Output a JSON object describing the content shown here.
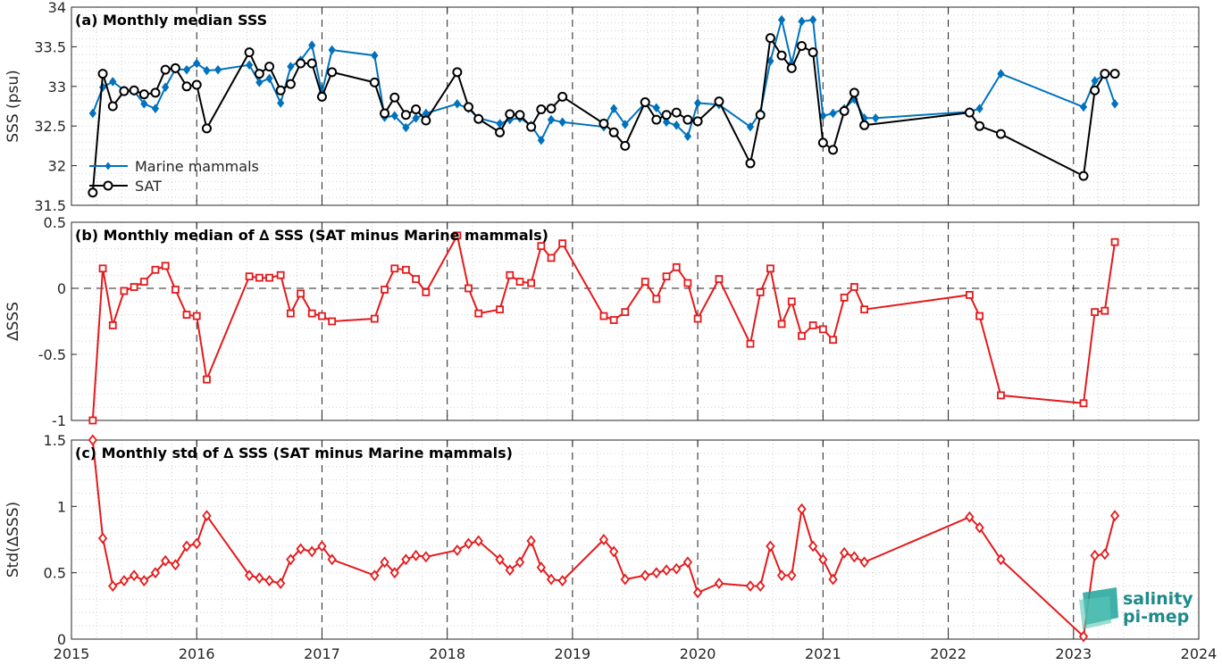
{
  "chart_data": [
    {
      "type": "line",
      "title": "(a) Monthly median SSS",
      "ylabel": "SSS (psu)",
      "ylim": [
        31.5,
        34
      ],
      "yticks": [
        "31.5",
        "32",
        "32.5",
        "33",
        "33.5",
        "34"
      ],
      "xlim": [
        2015,
        2024
      ],
      "xticks": [
        "2015",
        "2016",
        "2017",
        "2018",
        "2019",
        "2020",
        "2021",
        "2022",
        "2023",
        "2024"
      ],
      "grid": "minor dotted, yearly dashed vertical lines",
      "legend_position": "lower-left",
      "series": [
        {
          "name": "Marine mammals",
          "color": "#0072bd",
          "marker": "diamond",
          "x": [
            2015.17,
            2015.25,
            2015.33,
            2015.42,
            2015.5,
            2015.58,
            2015.67,
            2015.75,
            2015.83,
            2015.92,
            2016.0,
            2016.08,
            2016.17,
            2016.42,
            2016.5,
            2016.58,
            2016.67,
            2016.75,
            2016.83,
            2016.92,
            2017.0,
            2017.08,
            2017.42,
            2017.5,
            2017.58,
            2017.67,
            2017.75,
            2017.83,
            2018.08,
            2018.17,
            2018.25,
            2018.42,
            2018.5,
            2018.58,
            2018.67,
            2018.75,
            2018.83,
            2018.92,
            2019.25,
            2019.33,
            2019.42,
            2019.58,
            2019.67,
            2019.75,
            2019.83,
            2019.92,
            2020.0,
            2020.17,
            2020.42,
            2020.5,
            2020.58,
            2020.67,
            2020.75,
            2020.83,
            2020.92,
            2021.0,
            2021.08,
            2021.17,
            2021.25,
            2021.33,
            2021.42,
            2022.17,
            2022.25,
            2022.42,
            2023.08,
            2023.17,
            2023.25,
            2023.33
          ],
          "values": [
            32.66,
            32.99,
            33.06,
            32.95,
            32.94,
            32.78,
            32.72,
            32.99,
            33.22,
            33.21,
            33.29,
            33.2,
            33.21,
            33.27,
            33.05,
            33.1,
            32.79,
            33.25,
            33.33,
            33.52,
            32.92,
            33.46,
            33.39,
            32.61,
            32.63,
            32.48,
            32.6,
            32.66,
            32.78,
            32.72,
            32.6,
            32.53,
            32.58,
            32.6,
            32.51,
            32.32,
            32.58,
            32.55,
            32.49,
            32.72,
            32.52,
            32.79,
            32.73,
            32.55,
            32.51,
            32.37,
            32.79,
            32.77,
            32.49,
            32.67,
            33.32,
            33.84,
            33.29,
            33.82,
            33.84,
            32.63,
            32.66,
            32.72,
            32.84,
            32.6,
            32.6,
            32.68,
            32.72,
            33.16,
            32.74,
            33.07,
            33.15,
            32.78
          ]
        },
        {
          "name": "SAT",
          "color": "#000000",
          "marker": "circle",
          "x": [
            2015.17,
            2015.25,
            2015.33,
            2015.42,
            2015.5,
            2015.58,
            2015.67,
            2015.75,
            2015.83,
            2015.92,
            2016.0,
            2016.08,
            2016.42,
            2016.5,
            2016.58,
            2016.67,
            2016.75,
            2016.83,
            2016.92,
            2017.0,
            2017.08,
            2017.42,
            2017.5,
            2017.58,
            2017.67,
            2017.75,
            2017.83,
            2018.08,
            2018.17,
            2018.25,
            2018.42,
            2018.5,
            2018.58,
            2018.67,
            2018.75,
            2018.83,
            2018.92,
            2019.25,
            2019.33,
            2019.42,
            2019.58,
            2019.67,
            2019.75,
            2019.83,
            2019.92,
            2020.0,
            2020.17,
            2020.42,
            2020.5,
            2020.58,
            2020.67,
            2020.75,
            2020.83,
            2020.92,
            2021.0,
            2021.08,
            2021.17,
            2021.25,
            2021.33,
            2022.17,
            2022.25,
            2022.42,
            2023.08,
            2023.17,
            2023.25,
            2023.33
          ],
          "values": [
            31.66,
            33.16,
            32.75,
            32.94,
            32.95,
            32.9,
            32.92,
            33.21,
            33.23,
            33.0,
            33.02,
            32.47,
            33.43,
            33.16,
            33.25,
            32.95,
            33.03,
            33.29,
            33.29,
            32.87,
            33.18,
            33.05,
            32.66,
            32.86,
            32.64,
            32.71,
            32.57,
            33.18,
            32.74,
            32.59,
            32.42,
            32.65,
            32.64,
            32.49,
            32.71,
            32.72,
            32.87,
            32.53,
            32.42,
            32.25,
            32.8,
            32.58,
            32.64,
            32.67,
            32.58,
            32.56,
            32.81,
            32.03,
            32.64,
            33.61,
            33.39,
            33.23,
            33.51,
            33.43,
            32.29,
            32.2,
            32.69,
            32.92,
            32.51,
            32.67,
            32.5,
            32.4,
            31.87,
            32.95,
            33.16,
            33.16
          ]
        }
      ]
    },
    {
      "type": "line",
      "title": "(b) Monthly median of ∆ SSS (SAT minus Marine mammals)",
      "ylabel": "∆SSS",
      "ylim": [
        -1,
        0.5
      ],
      "yticks": [
        "-1",
        "-0.5",
        "0",
        "0.5"
      ],
      "xlim": [
        2015,
        2024
      ],
      "reference_line": 0,
      "series": [
        {
          "color": "#e41a1c",
          "marker": "square",
          "x": [
            2015.17,
            2015.25,
            2015.33,
            2015.42,
            2015.5,
            2015.58,
            2015.67,
            2015.75,
            2015.83,
            2015.92,
            2016.0,
            2016.08,
            2016.42,
            2016.5,
            2016.58,
            2016.67,
            2016.75,
            2016.83,
            2016.92,
            2017.0,
            2017.08,
            2017.42,
            2017.5,
            2017.58,
            2017.67,
            2017.75,
            2017.83,
            2018.08,
            2018.17,
            2018.25,
            2018.42,
            2018.5,
            2018.58,
            2018.67,
            2018.75,
            2018.83,
            2018.92,
            2019.25,
            2019.33,
            2019.42,
            2019.58,
            2019.67,
            2019.75,
            2019.83,
            2019.92,
            2020.0,
            2020.17,
            2020.42,
            2020.5,
            2020.58,
            2020.67,
            2020.75,
            2020.83,
            2020.92,
            2021.0,
            2021.08,
            2021.17,
            2021.25,
            2021.33,
            2022.17,
            2022.25,
            2022.42,
            2023.08,
            2023.17,
            2023.25,
            2023.33
          ],
          "values": [
            -1.0,
            0.15,
            -0.28,
            -0.02,
            0.01,
            0.05,
            0.14,
            0.17,
            -0.01,
            -0.2,
            -0.21,
            -0.69,
            0.09,
            0.08,
            0.08,
            0.1,
            -0.19,
            -0.04,
            -0.19,
            -0.21,
            -0.25,
            -0.23,
            -0.01,
            0.15,
            0.14,
            0.07,
            -0.03,
            0.4,
            0.0,
            -0.19,
            -0.16,
            0.1,
            0.05,
            0.04,
            0.32,
            0.23,
            0.34,
            -0.21,
            -0.24,
            -0.18,
            0.05,
            -0.08,
            0.09,
            0.16,
            0.04,
            -0.23,
            0.07,
            -0.42,
            -0.03,
            0.15,
            -0.27,
            -0.1,
            -0.36,
            -0.28,
            -0.31,
            -0.39,
            -0.07,
            0.01,
            -0.16,
            -0.05,
            -0.21,
            -0.81,
            -0.87,
            -0.18,
            -0.17,
            0.35
          ]
        }
      ]
    },
    {
      "type": "line",
      "title": "(c) Monthly std of ∆ SSS (SAT minus Marine mammals)",
      "ylabel": "Std(∆SSS)",
      "ylim": [
        0,
        1.5
      ],
      "yticks": [
        "0",
        "0.5",
        "1",
        "1.5"
      ],
      "xlim": [
        2015,
        2024
      ],
      "series": [
        {
          "color": "#e41a1c",
          "marker": "diamond-open",
          "x": [
            2015.17,
            2015.25,
            2015.33,
            2015.42,
            2015.5,
            2015.58,
            2015.67,
            2015.75,
            2015.83,
            2015.92,
            2016.0,
            2016.08,
            2016.42,
            2016.5,
            2016.58,
            2016.67,
            2016.75,
            2016.83,
            2016.92,
            2017.0,
            2017.08,
            2017.42,
            2017.5,
            2017.58,
            2017.67,
            2017.75,
            2017.83,
            2018.08,
            2018.17,
            2018.25,
            2018.42,
            2018.5,
            2018.58,
            2018.67,
            2018.75,
            2018.83,
            2018.92,
            2019.25,
            2019.33,
            2019.42,
            2019.58,
            2019.67,
            2019.75,
            2019.83,
            2019.92,
            2020.0,
            2020.17,
            2020.42,
            2020.5,
            2020.58,
            2020.67,
            2020.75,
            2020.83,
            2020.92,
            2021.0,
            2021.08,
            2021.17,
            2021.25,
            2021.33,
            2022.17,
            2022.25,
            2022.42,
            2023.08,
            2023.17,
            2023.25,
            2023.33
          ],
          "values": [
            1.5,
            0.76,
            0.4,
            0.44,
            0.48,
            0.44,
            0.5,
            0.59,
            0.56,
            0.7,
            0.72,
            0.93,
            0.48,
            0.46,
            0.44,
            0.42,
            0.6,
            0.68,
            0.66,
            0.7,
            0.6,
            0.48,
            0.58,
            0.5,
            0.6,
            0.63,
            0.62,
            0.67,
            0.72,
            0.74,
            0.6,
            0.52,
            0.58,
            0.74,
            0.54,
            0.45,
            0.44,
            0.75,
            0.66,
            0.45,
            0.48,
            0.5,
            0.52,
            0.53,
            0.58,
            0.35,
            0.42,
            0.4,
            0.4,
            0.7,
            0.48,
            0.48,
            0.98,
            0.7,
            0.6,
            0.45,
            0.65,
            0.62,
            0.58,
            0.92,
            0.84,
            0.6,
            0.02,
            0.63,
            0.64,
            0.93
          ]
        }
      ]
    }
  ],
  "logo": {
    "line1": "salinity",
    "line2": "pi-mep"
  }
}
